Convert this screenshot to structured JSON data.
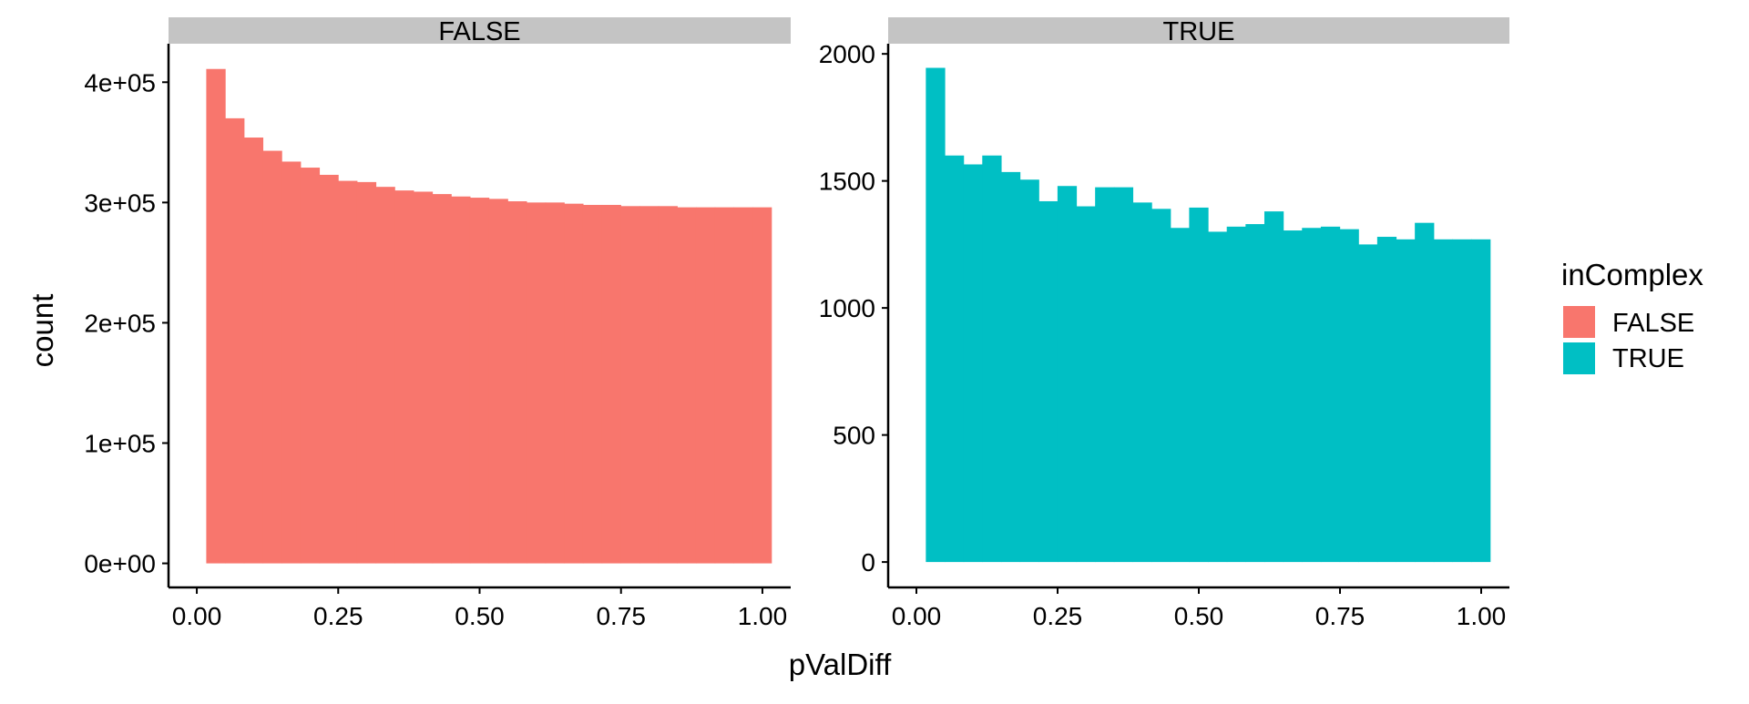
{
  "chart_data": {
    "type": "bar",
    "xlabel": "pValDiff",
    "ylabel": "count",
    "legend": {
      "title": "inComplex",
      "placement": "right",
      "entries": [
        {
          "label": "FALSE",
          "color": "#F8766D"
        },
        {
          "label": "TRUE",
          "color": "#00BFC4"
        }
      ]
    },
    "grid": false,
    "x_ticks": [
      "0.00",
      "0.25",
      "0.50",
      "0.75",
      "1.00"
    ],
    "bin_width": 0.0333,
    "bin_start": 0.0167,
    "panels": [
      {
        "strip": "FALSE",
        "color": "#F8766D",
        "xlim": [
          -0.05,
          1.05
        ],
        "ylim": [
          -20000,
          432000
        ],
        "y_ticks": [
          {
            "value": 0,
            "label": "0e+00"
          },
          {
            "value": 100000,
            "label": "1e+05"
          },
          {
            "value": 200000,
            "label": "2e+05"
          },
          {
            "value": 300000,
            "label": "3e+05"
          },
          {
            "value": 400000,
            "label": "4e+05"
          }
        ],
        "values": [
          411000,
          370000,
          354000,
          343000,
          334000,
          329000,
          323000,
          318000,
          317000,
          313000,
          310000,
          309000,
          307000,
          305000,
          304000,
          303000,
          301000,
          300000,
          300000,
          299000,
          298000,
          298000,
          297000,
          297000,
          297000,
          296000,
          296000,
          296000,
          296000,
          296000
        ]
      },
      {
        "strip": "TRUE",
        "color": "#00BFC4",
        "xlim": [
          -0.05,
          1.05
        ],
        "ylim": [
          -100,
          2040
        ],
        "y_ticks": [
          {
            "value": 0,
            "label": "0"
          },
          {
            "value": 500,
            "label": "500"
          },
          {
            "value": 1000,
            "label": "1000"
          },
          {
            "value": 1500,
            "label": "1500"
          },
          {
            "value": 2000,
            "label": "2000"
          }
        ],
        "values": [
          1945,
          1600,
          1565,
          1600,
          1535,
          1505,
          1420,
          1480,
          1400,
          1475,
          1475,
          1415,
          1390,
          1315,
          1395,
          1300,
          1320,
          1330,
          1380,
          1305,
          1315,
          1320,
          1310,
          1250,
          1280,
          1270,
          1335,
          1270,
          1270,
          1270
        ]
      }
    ]
  }
}
